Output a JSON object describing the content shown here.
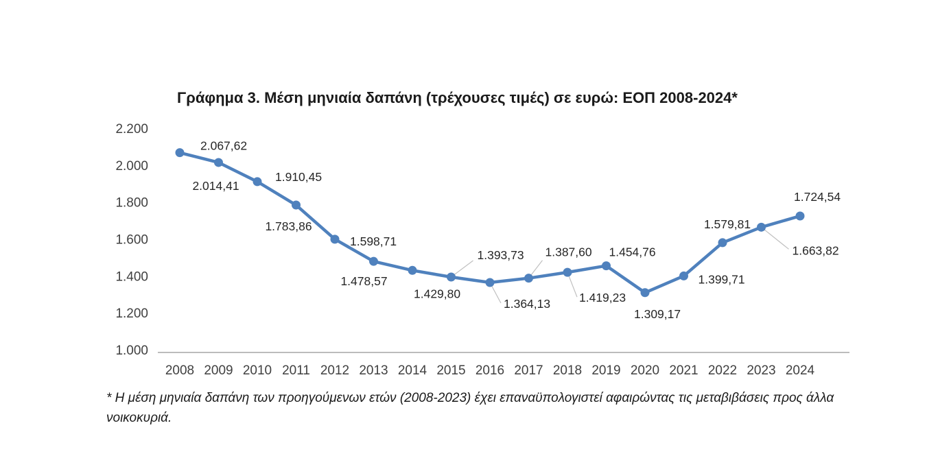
{
  "chart_data": {
    "type": "line",
    "title": "Γράφημα 3. Μέση μηνιαία δαπάνη (τρέχουσες τιμές) σε ευρώ: ΕΟΠ 2008-2024*",
    "categories": [
      "2008",
      "2009",
      "2010",
      "2011",
      "2012",
      "2013",
      "2014",
      "2015",
      "2016",
      "2017",
      "2018",
      "2019",
      "2020",
      "2021",
      "2022",
      "2023",
      "2024"
    ],
    "values": [
      2067.62,
      2014.41,
      1910.45,
      1783.86,
      1598.71,
      1478.57,
      1429.8,
      1393.73,
      1364.13,
      1387.6,
      1419.23,
      1454.76,
      1309.17,
      1399.71,
      1579.81,
      1663.82,
      1724.54
    ],
    "point_labels": [
      "2.067,62",
      "2.014,41",
      "1.910,45",
      "1.783,86",
      "1.598,71",
      "1.478,57",
      "1.429,80",
      "1.393,73",
      "1.364,13",
      "1.387,60",
      "1.419,23",
      "1.454,76",
      "1.309,17",
      "1.399,71",
      "1.579,81",
      "1.663,82",
      "1.724,54"
    ],
    "ytick_values": [
      2200,
      2000,
      1800,
      1600,
      1400,
      1200,
      1000
    ],
    "ytick_labels": [
      "2.200",
      "2.000",
      "1.800",
      "1.600",
      "1.400",
      "1.200",
      "1.000"
    ],
    "ylim": [
      1000,
      2200
    ],
    "xlabel": "",
    "ylabel": "",
    "grid": false,
    "legend": false,
    "line_color": "#4f81bd",
    "marker_color": "#4f81bd",
    "leader_color": "#bfbfbf",
    "axis_color": "#a6a6a6",
    "axis_text_color": "#404040",
    "label_text_color": "#262626"
  },
  "footnote": "* Η μέση μηνιαία δαπάνη των προηγούμενων ετών (2008-2023) έχει επαναϋπολογιστεί αφαιρώντας τις μεταβιβάσεις προς άλλα νοικοκυριά."
}
